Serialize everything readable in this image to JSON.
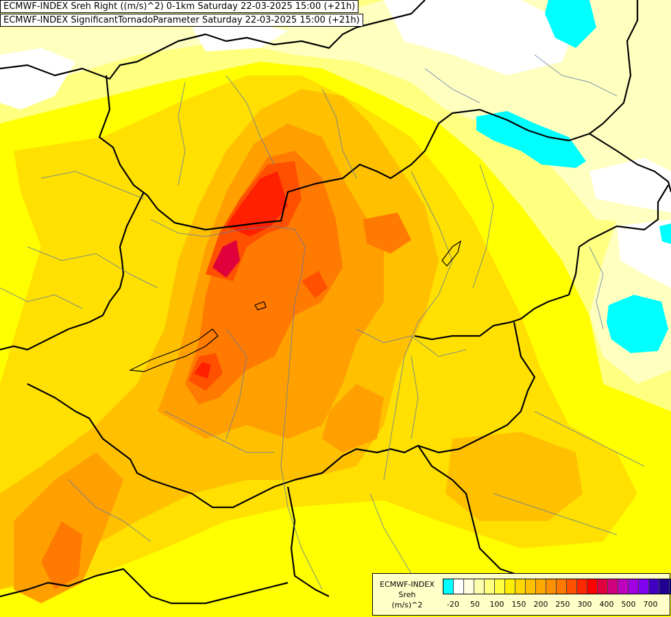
{
  "header": {
    "title_line1": "ECMWF-INDEX Sreh Right ((m/s)^2) 0-1km Saturday 22-03-2025 15:00 (+21h)",
    "title_line2": "ECMWF-INDEX SignificantTornadoParameter Saturday 22-03-2025 15:00 (+21h)"
  },
  "legend": {
    "line1": "ECMWF-INDEX",
    "line2": "Sreh",
    "line3": "(m/s)^2",
    "colors": [
      "#00ffff",
      "#ffffff",
      "#ffffe0",
      "#ffffb0",
      "#ffff80",
      "#ffff40",
      "#ffee00",
      "#ffd800",
      "#ffc000",
      "#ffa800",
      "#ff9000",
      "#ff7800",
      "#ff5000",
      "#ff2800",
      "#ff0000",
      "#e00040",
      "#d00080",
      "#c000c0",
      "#a000e0",
      "#8000f0",
      "#4000c0",
      "#200090",
      "#000080"
    ],
    "ticks": [
      "-20",
      "50",
      "100",
      "150",
      "200",
      "250",
      "300",
      "400",
      "500",
      "700"
    ]
  },
  "map": {
    "colors": {
      "cyan": "#00ffff",
      "white": "#ffffff",
      "pale": "#ffffc0",
      "light_yellow": "#ffff80",
      "yellow": "#ffff00",
      "gold": "#ffe000",
      "amber": "#ffc000",
      "orange": "#ffa000",
      "dark_orange": "#ff7a00",
      "red_orange": "#ff5000",
      "red": "#ff2000",
      "crimson": "#e0003c"
    }
  }
}
